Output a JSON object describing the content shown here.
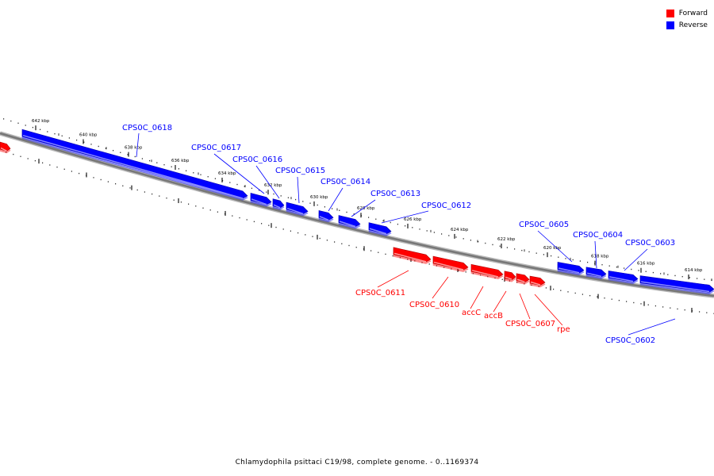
{
  "legend": {
    "forward": {
      "label": "Forward",
      "color": "#ff0000"
    },
    "reverse": {
      "label": "Reverse",
      "color": "#0000ff"
    }
  },
  "caption": "Chlamydophila psittaci C19/98, complete genome. - 0..1169374",
  "tick_labels": [
    "642 kbp",
    "640 kbp",
    "638 kbp",
    "636 kbp",
    "634 kbp",
    "632 kbp",
    "630 kbp",
    "628 kbp",
    "626 kbp",
    "624 kbp",
    "622 kbp",
    "620 kbp",
    "618 kbp",
    "616 kbp",
    "614 kbp"
  ],
  "genes": [
    {
      "name": "CPS0C_0618",
      "strand": "reverse"
    },
    {
      "name": "CPS0C_0617",
      "strand": "reverse"
    },
    {
      "name": "CPS0C_0616",
      "strand": "reverse"
    },
    {
      "name": "CPS0C_0615",
      "strand": "reverse"
    },
    {
      "name": "CPS0C_0614",
      "strand": "reverse"
    },
    {
      "name": "CPS0C_0613",
      "strand": "reverse"
    },
    {
      "name": "CPS0C_0612",
      "strand": "reverse"
    },
    {
      "name": "CPS0C_0611",
      "strand": "forward"
    },
    {
      "name": "CPS0C_0610",
      "strand": "forward"
    },
    {
      "name": "accC",
      "strand": "forward"
    },
    {
      "name": "accB",
      "strand": "forward"
    },
    {
      "name": "CPS0C_0607",
      "strand": "forward"
    },
    {
      "name": "rpe",
      "strand": "forward"
    },
    {
      "name": "CPS0C_0605",
      "strand": "reverse"
    },
    {
      "name": "CPS0C_0604",
      "strand": "reverse"
    },
    {
      "name": "CPS0C_0603",
      "strand": "reverse"
    },
    {
      "name": "CPS0C_0602",
      "strand": "reverse"
    }
  ]
}
